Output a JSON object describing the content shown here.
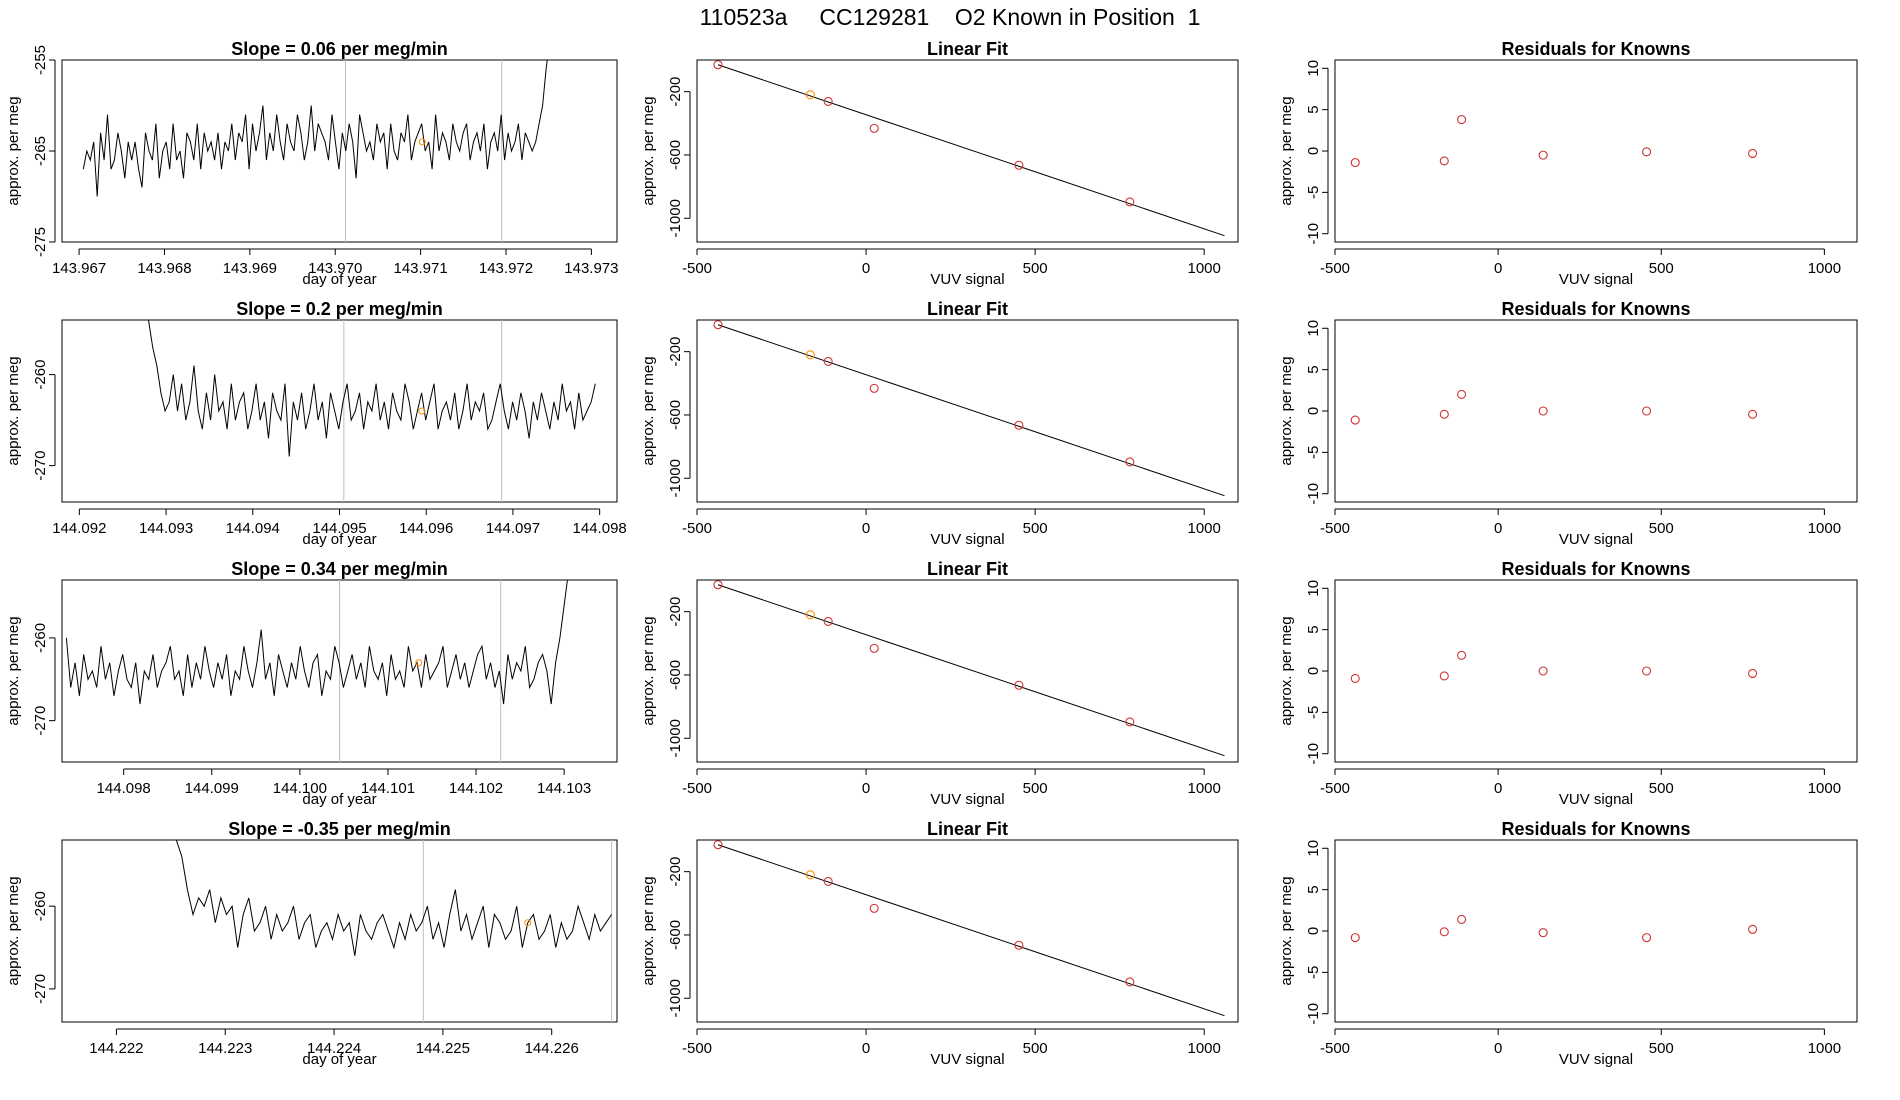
{
  "page_title": "110523a     CC129281    O2 Known in Position  1",
  "colors": {
    "line": "#000000",
    "known_circle": "#cd3333",
    "highlight_circle": "#ff8c00",
    "guide": "#bebebe"
  },
  "chart_data": [
    {
      "type": "line",
      "panel": "time-series",
      "row": 1,
      "title": "Slope =  0.06  per meg/min",
      "xlabel": "day of year",
      "ylabel": "approx. per meg",
      "xlim": [
        143.9668,
        143.9733
      ],
      "ylim": [
        -275,
        -255
      ],
      "xticks": [
        "143.967",
        "143.968",
        "143.969",
        "143.970",
        "143.971",
        "143.972",
        "143.973"
      ],
      "yticks": [
        "-275",
        "-265",
        "-255"
      ],
      "vlines": [
        143.97012,
        143.97195
      ],
      "series_start": 143.96705,
      "series_end": 143.97255,
      "values": [
        -267,
        -265,
        -266,
        -264,
        -270,
        -263,
        -266,
        -261,
        -267,
        -266,
        -263,
        -265,
        -268,
        -264,
        -266,
        -264,
        -267,
        -269,
        -263,
        -265,
        -266,
        -262,
        -268,
        -265,
        -264,
        -267,
        -262,
        -266,
        -265,
        -268,
        -263,
        -264,
        -266,
        -262,
        -267,
        -263,
        -265,
        -264,
        -266,
        -263,
        -267,
        -264,
        -265,
        -262,
        -266,
        -263,
        -264,
        -261,
        -267,
        -262,
        -265,
        -263,
        -260,
        -266,
        -263,
        -265,
        -261,
        -264,
        -266,
        -262,
        -264,
        -265,
        -261,
        -263,
        -266,
        -264,
        -260,
        -265,
        -262,
        -263,
        -264,
        -266,
        -261,
        -264,
        -267,
        -263,
        -265,
        -262,
        -264,
        -268,
        -261,
        -263,
        -265,
        -264,
        -266,
        -262,
        -264,
        -263,
        -267,
        -262,
        -265,
        -266,
        -263,
        -264,
        -261,
        -266,
        -264,
        -263,
        -262,
        -265,
        -264,
        -267,
        -261,
        -265,
        -263,
        -264,
        -266,
        -262,
        -264,
        -265,
        -263,
        -262,
        -266,
        -264,
        -263,
        -265,
        -262,
        -267,
        -264,
        -263,
        -265,
        -261,
        -266,
        -263,
        -265,
        -264,
        -262,
        -266,
        -263,
        -264,
        -265,
        -264,
        -262,
        -260,
        -256,
        -253,
        -251
      ],
      "marker": {
        "x": 143.97102,
        "y": -264
      }
    },
    {
      "type": "scatter",
      "panel": "linear-fit",
      "row": 1,
      "title": "Linear Fit",
      "xlabel": "VUV signal",
      "ylabel": "approx. per meg",
      "xlim": [
        -500,
        1100
      ],
      "ylim": [
        -1150,
        0
      ],
      "xticks": [
        "-500",
        "0",
        "500",
        "1000"
      ],
      "yticks": [
        "-200",
        "-600",
        "-1000"
      ],
      "points": [
        [
          -438,
          -30
        ],
        [
          -165,
          -220
        ],
        [
          -112,
          -262
        ],
        [
          24,
          -432
        ],
        [
          452,
          -665
        ],
        [
          780,
          -897
        ]
      ],
      "highlight_index": 1,
      "fit_line": [
        [
          -438,
          -30
        ],
        [
          1060,
          -1110
        ]
      ]
    },
    {
      "type": "scatter",
      "panel": "residuals",
      "row": 1,
      "title": "Residuals for Knowns",
      "xlabel": "VUV signal",
      "ylabel": "approx. per meg",
      "xlim": [
        -500,
        1100
      ],
      "ylim": [
        -11,
        11
      ],
      "xticks": [
        "-500",
        "0",
        "500",
        "1000"
      ],
      "yticks": [
        "-10",
        "-5",
        "0",
        "5",
        "10"
      ],
      "points": [
        [
          -438,
          -1.4
        ],
        [
          -165,
          -1.2
        ],
        [
          -112,
          3.8
        ],
        [
          138,
          -0.5
        ],
        [
          455,
          -0.1
        ],
        [
          780,
          -0.3
        ]
      ]
    },
    {
      "type": "line",
      "panel": "time-series",
      "row": 2,
      "title": "Slope =  0.2  per meg/min",
      "xlabel": "day of year",
      "ylabel": "approx. per meg",
      "xlim": [
        144.0918,
        144.0982
      ],
      "ylim": [
        -274,
        -254
      ],
      "xticks": [
        "144.092",
        "144.093",
        "144.094",
        "144.095",
        "144.096",
        "144.097",
        "144.098"
      ],
      "yticks": [
        "-270",
        "-260"
      ],
      "vlines": [
        144.09505,
        144.09687
      ],
      "series_start": 144.09275,
      "series_end": 144.09795,
      "values": [
        -253,
        -254,
        -257,
        -259,
        -262,
        -264,
        -263,
        -260,
        -264,
        -261,
        -265,
        -263,
        -259,
        -264,
        -266,
        -262,
        -265,
        -260,
        -264,
        -263,
        -266,
        -261,
        -265,
        -263,
        -262,
        -266,
        -264,
        -261,
        -265,
        -263,
        -267,
        -262,
        -264,
        -265,
        -261,
        -269,
        -263,
        -265,
        -262,
        -266,
        -264,
        -261,
        -265,
        -263,
        -267,
        -262,
        -264,
        -266,
        -263,
        -261,
        -265,
        -264,
        -262,
        -266,
        -263,
        -264,
        -261,
        -265,
        -263,
        -266,
        -262,
        -264,
        -265,
        -261,
        -263,
        -266,
        -264,
        -262,
        -265,
        -263,
        -261,
        -266,
        -264,
        -263,
        -265,
        -262,
        -266,
        -264,
        -261,
        -265,
        -263,
        -264,
        -262,
        -266,
        -265,
        -263,
        -261,
        -264,
        -266,
        -263,
        -265,
        -262,
        -264,
        -267,
        -263,
        -265,
        -262,
        -264,
        -266,
        -263,
        -265,
        -261,
        -264,
        -263,
        -266,
        -262,
        -265,
        -264,
        -263,
        -261
      ],
      "marker": {
        "x": 144.09595,
        "y": -264
      }
    },
    {
      "type": "scatter",
      "panel": "linear-fit",
      "row": 2,
      "title": "Linear Fit",
      "xlabel": "VUV signal",
      "ylabel": "approx. per meg",
      "xlim": [
        -500,
        1100
      ],
      "ylim": [
        -1150,
        0
      ],
      "xticks": [
        "-500",
        "0",
        "500",
        "1000"
      ],
      "yticks": [
        "-200",
        "-600",
        "-1000"
      ],
      "points": [
        [
          -438,
          -30
        ],
        [
          -165,
          -220
        ],
        [
          -112,
          -262
        ],
        [
          24,
          -432
        ],
        [
          452,
          -665
        ],
        [
          780,
          -897
        ]
      ],
      "highlight_index": 1,
      "fit_line": [
        [
          -438,
          -30
        ],
        [
          1060,
          -1110
        ]
      ]
    },
    {
      "type": "scatter",
      "panel": "residuals",
      "row": 2,
      "title": "Residuals for Knowns",
      "xlabel": "VUV signal",
      "ylabel": "approx. per meg",
      "xlim": [
        -500,
        1100
      ],
      "ylim": [
        -11,
        11
      ],
      "xticks": [
        "-500",
        "0",
        "500",
        "1000"
      ],
      "yticks": [
        "-10",
        "-5",
        "0",
        "5",
        "10"
      ],
      "points": [
        [
          -438,
          -1.1
        ],
        [
          -165,
          -0.4
        ],
        [
          -112,
          2.0
        ],
        [
          138,
          0.0
        ],
        [
          455,
          0.0
        ],
        [
          780,
          -0.4
        ]
      ]
    },
    {
      "type": "line",
      "panel": "time-series",
      "row": 3,
      "title": "Slope =  0.34  per meg/min",
      "xlabel": "day of year",
      "ylabel": "approx. per meg",
      "xlim": [
        144.0973,
        144.1036
      ],
      "ylim": [
        -275,
        -253
      ],
      "xticks": [
        "144.098",
        "144.099",
        "144.100",
        "144.101",
        "144.102",
        "144.103"
      ],
      "yticks": [
        "-270",
        "-260"
      ],
      "vlines": [
        144.10045,
        144.10228
      ],
      "series_start": 144.09735,
      "series_end": 144.10305,
      "values": [
        -260,
        -266,
        -263,
        -267,
        -262,
        -265,
        -264,
        -266,
        -261,
        -265,
        -263,
        -267,
        -264,
        -262,
        -265,
        -266,
        -263,
        -268,
        -264,
        -265,
        -262,
        -266,
        -264,
        -263,
        -261,
        -265,
        -264,
        -267,
        -262,
        -266,
        -263,
        -265,
        -261,
        -264,
        -266,
        -263,
        -265,
        -262,
        -267,
        -264,
        -265,
        -261,
        -264,
        -266,
        -263,
        -259,
        -265,
        -263,
        -267,
        -262,
        -264,
        -266,
        -263,
        -265,
        -261,
        -264,
        -266,
        -263,
        -262,
        -267,
        -264,
        -265,
        -261,
        -263,
        -266,
        -264,
        -262,
        -265,
        -263,
        -266,
        -261,
        -264,
        -265,
        -263,
        -267,
        -262,
        -265,
        -264,
        -266,
        -261,
        -264,
        -263,
        -266,
        -262,
        -265,
        -264,
        -263,
        -261,
        -266,
        -264,
        -262,
        -265,
        -263,
        -266,
        -264,
        -262,
        -261,
        -265,
        -263,
        -266,
        -264,
        -268,
        -262,
        -265,
        -263,
        -264,
        -261,
        -266,
        -265,
        -263,
        -262,
        -264,
        -268,
        -263,
        -260,
        -256,
        -252
      ],
      "marker": {
        "x": 144.10135,
        "y": -263
      }
    },
    {
      "type": "scatter",
      "panel": "linear-fit",
      "row": 3,
      "title": "Linear Fit",
      "xlabel": "VUV signal",
      "ylabel": "approx. per meg",
      "xlim": [
        -500,
        1100
      ],
      "ylim": [
        -1150,
        0
      ],
      "xticks": [
        "-500",
        "0",
        "500",
        "1000"
      ],
      "yticks": [
        "-200",
        "-600",
        "-1000"
      ],
      "points": [
        [
          -438,
          -30
        ],
        [
          -165,
          -220
        ],
        [
          -112,
          -262
        ],
        [
          24,
          -432
        ],
        [
          452,
          -665
        ],
        [
          780,
          -897
        ]
      ],
      "highlight_index": 1,
      "fit_line": [
        [
          -438,
          -30
        ],
        [
          1060,
          -1110
        ]
      ]
    },
    {
      "type": "scatter",
      "panel": "residuals",
      "row": 3,
      "title": "Residuals for Knowns",
      "xlabel": "VUV signal",
      "ylabel": "approx. per meg",
      "xlim": [
        -500,
        1100
      ],
      "ylim": [
        -11,
        11
      ],
      "xticks": [
        "-500",
        "0",
        "500",
        "1000"
      ],
      "yticks": [
        "-10",
        "-5",
        "0",
        "5",
        "10"
      ],
      "points": [
        [
          -438,
          -0.9
        ],
        [
          -165,
          -0.6
        ],
        [
          -112,
          1.9
        ],
        [
          138,
          0.0
        ],
        [
          455,
          0.0
        ],
        [
          780,
          -0.3
        ]
      ]
    },
    {
      "type": "line",
      "panel": "time-series",
      "row": 4,
      "title": "Slope =  -0.35  per meg/min",
      "xlabel": "day of year",
      "ylabel": "approx. per meg",
      "xlim": [
        144.2215,
        144.2266
      ],
      "ylim": [
        -274,
        -252
      ],
      "xticks": [
        "144.222",
        "144.223",
        "144.224",
        "144.225",
        "144.226"
      ],
      "yticks": [
        "-270",
        "-260"
      ],
      "vlines": [
        144.22482,
        144.22655
      ],
      "series_start": 144.22255,
      "series_end": 144.22655,
      "values": [
        -252,
        -254,
        -258,
        -261,
        -259,
        -260,
        -258,
        -262,
        -259,
        -261,
        -260,
        -265,
        -261,
        -259,
        -263,
        -262,
        -260,
        -264,
        -261,
        -263,
        -262,
        -260,
        -264,
        -262,
        -261,
        -265,
        -263,
        -262,
        -264,
        -261,
        -263,
        -262,
        -266,
        -261,
        -263,
        -264,
        -262,
        -261,
        -263,
        -265,
        -262,
        -264,
        -261,
        -263,
        -262,
        -260,
        -264,
        -262,
        -265,
        -261,
        -258,
        -263,
        -261,
        -264,
        -262,
        -260,
        -265,
        -261,
        -262,
        -264,
        -263,
        -260,
        -265,
        -262,
        -261,
        -264,
        -263,
        -261,
        -265,
        -262,
        -264,
        -263,
        -260,
        -262,
        -264,
        -261,
        -263,
        -262,
        -261
      ],
      "marker": {
        "x": 144.22578,
        "y": -262
      }
    },
    {
      "type": "scatter",
      "panel": "linear-fit",
      "row": 4,
      "title": "Linear Fit",
      "xlabel": "VUV signal",
      "ylabel": "approx. per meg",
      "xlim": [
        -500,
        1100
      ],
      "ylim": [
        -1150,
        0
      ],
      "xticks": [
        "-500",
        "0",
        "500",
        "1000"
      ],
      "yticks": [
        "-200",
        "-600",
        "-1000"
      ],
      "points": [
        [
          -438,
          -30
        ],
        [
          -165,
          -220
        ],
        [
          -112,
          -262
        ],
        [
          24,
          -432
        ],
        [
          452,
          -665
        ],
        [
          780,
          -897
        ]
      ],
      "highlight_index": 1,
      "fit_line": [
        [
          -438,
          -30
        ],
        [
          1060,
          -1110
        ]
      ]
    },
    {
      "type": "scatter",
      "panel": "residuals",
      "row": 4,
      "title": "Residuals for Knowns",
      "xlabel": "VUV signal",
      "ylabel": "approx. per meg",
      "xlim": [
        -500,
        1100
      ],
      "ylim": [
        -11,
        11
      ],
      "xticks": [
        "-500",
        "0",
        "500",
        "1000"
      ],
      "yticks": [
        "-10",
        "-5",
        "0",
        "5",
        "10"
      ],
      "points": [
        [
          -438,
          -0.8
        ],
        [
          -165,
          -0.1
        ],
        [
          -112,
          1.4
        ],
        [
          138,
          -0.2
        ],
        [
          455,
          -0.8
        ],
        [
          780,
          0.2
        ]
      ]
    }
  ]
}
